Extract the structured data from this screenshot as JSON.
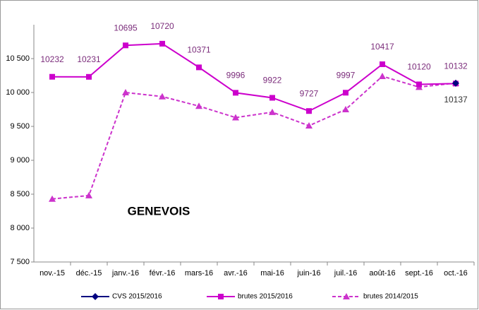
{
  "chart_data": {
    "type": "line",
    "annotation": "GENEVOIS",
    "categories": [
      "nov.-15",
      "déc.-15",
      "janv.-16",
      "févr.-16",
      "mars-16",
      "avr.-16",
      "mai-16",
      "juin-16",
      "juil.-16",
      "août-16",
      "sept.-16",
      "oct.-16"
    ],
    "series": [
      {
        "name": "CVS 2015/2016",
        "color": "#000080",
        "marker": "diamond",
        "dash": false,
        "label_color": "#333333",
        "label_side": "below",
        "values": [
          null,
          null,
          null,
          null,
          null,
          null,
          null,
          null,
          null,
          null,
          null,
          10137
        ]
      },
      {
        "name": "brutes 2015/2016",
        "color": "#cc00cc",
        "marker": "square",
        "dash": false,
        "label_color": "#7b2c7b",
        "label_side": "above",
        "values": [
          10232,
          10231,
          10695,
          10720,
          10371,
          9996,
          9922,
          9727,
          9997,
          10417,
          10120,
          10132
        ]
      },
      {
        "name": "brutes 2014/2015",
        "color": "#cc33cc",
        "marker": "triangle",
        "dash": true,
        "values": [
          8430,
          8480,
          10000,
          9940,
          9800,
          9630,
          9710,
          9510,
          9750,
          10240,
          10080,
          10140
        ]
      }
    ],
    "ylim": [
      7500,
      11000
    ],
    "yticks": [
      {
        "value": 7500,
        "label": "7 500"
      },
      {
        "value": 8000,
        "label": "8 000"
      },
      {
        "value": 8500,
        "label": "8 500"
      },
      {
        "value": 9000,
        "label": "9 000"
      },
      {
        "value": 9500,
        "label": "9 500"
      },
      {
        "value": 10000,
        "label": "10 000"
      },
      {
        "value": 10500,
        "label": "10 500"
      }
    ]
  }
}
